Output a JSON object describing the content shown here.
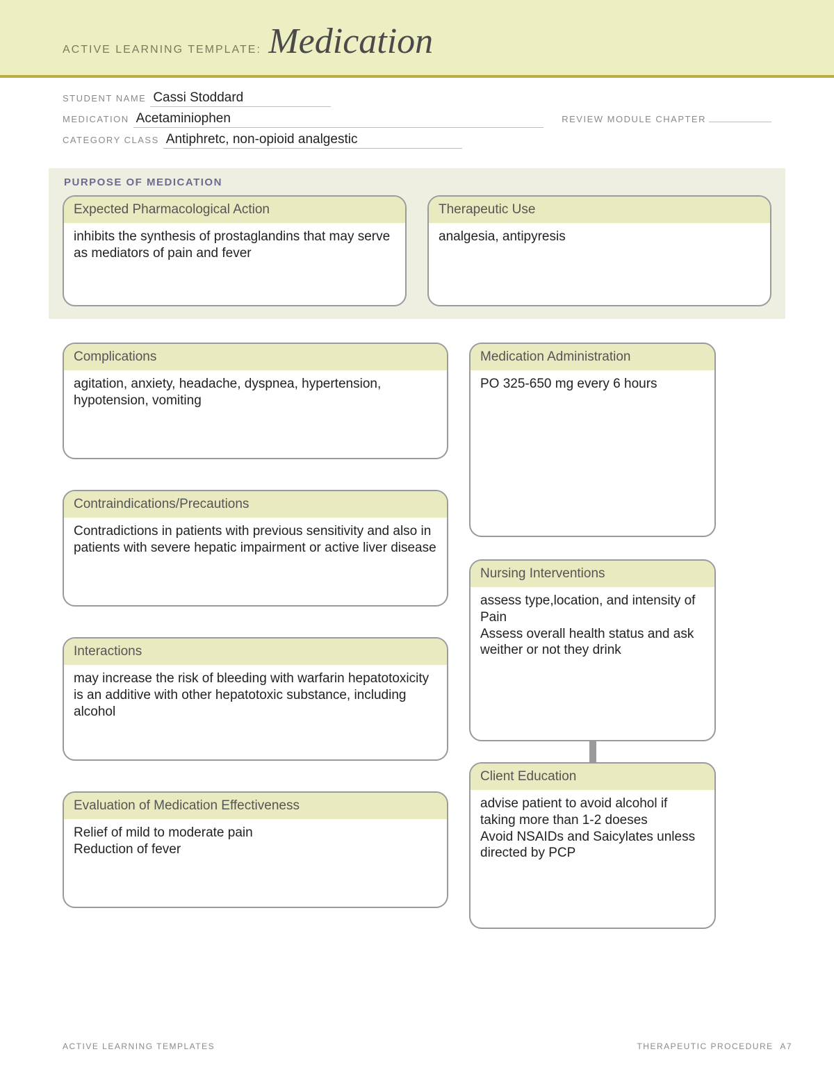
{
  "banner": {
    "label": "ACTIVE LEARNING TEMPLATE:",
    "title": "Medication"
  },
  "meta": {
    "student_label": "STUDENT NAME",
    "student_value": "Cassi Stoddard",
    "medication_label": "MEDICATION",
    "medication_value": "Acetaminiophen",
    "review_label": "REVIEW MODULE CHAPTER",
    "review_value": "",
    "category_label": "CATEGORY CLASS",
    "category_value": "Antiphretc, non-opioid analgestic"
  },
  "purpose": {
    "heading": "PURPOSE OF MEDICATION",
    "pharma": {
      "title": "Expected Pharmacological Action",
      "body": "inhibits the synthesis of prostaglandins that may serve as mediators of pain and fever"
    },
    "therapeutic": {
      "title": "Therapeutic Use",
      "body": "analgesia, antipyresis"
    }
  },
  "cards": {
    "complications": {
      "title": "Complications",
      "body": "agitation, anxiety, headache, dyspnea, hypertension, hypotension, vomiting"
    },
    "admin": {
      "title": "Medication Administration",
      "body": "PO 325-650 mg every 6 hours"
    },
    "contra": {
      "title": "Contraindications/Precautions",
      "body": "Contradictions in patients with previous sensitivity and also in patients with severe hepatic impairment or active liver disease"
    },
    "nursing": {
      "title": "Nursing Interventions",
      "body": "assess type,location, and intensity of Pain\nAssess overall health status and ask weither or not they drink"
    },
    "interactions": {
      "title": "Interactions",
      "body": "may increase the risk of bleeding with warfarin hepatotoxicity is an additive with other hepatotoxic substance, including alcohol"
    },
    "client": {
      "title": "Client Education",
      "body": "advise patient to avoid alcohol if taking more than 1-2 doeses\nAvoid NSAIDs and Saicylates unless directed by PCP"
    },
    "eval": {
      "title": "Evaluation of Medication Effectiveness",
      "body": "Relief of mild to moderate pain\nReduction of fever"
    }
  },
  "footer": {
    "left": "ACTIVE LEARNING TEMPLATES",
    "right": "THERAPEUTIC PROCEDURE",
    "page": "A7"
  },
  "colors": {
    "banner_bg": "#edeec2",
    "banner_rule": "#b9af3f",
    "card_head_bg": "#e9eac0",
    "card_border": "#9a9a9a",
    "purpose_bg": "#efefe1"
  }
}
